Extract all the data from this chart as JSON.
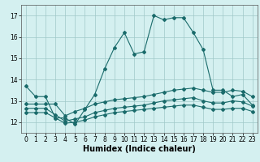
{
  "xlabel": "Humidex (Indice chaleur)",
  "xlim": [
    -0.5,
    23.5
  ],
  "ylim": [
    11.5,
    17.5
  ],
  "yticks": [
    12,
    13,
    14,
    15,
    16,
    17
  ],
  "xticks": [
    0,
    1,
    2,
    3,
    4,
    5,
    6,
    7,
    8,
    9,
    10,
    11,
    12,
    13,
    14,
    15,
    16,
    17,
    18,
    19,
    20,
    21,
    22,
    23
  ],
  "bg_color": "#d4f0f0",
  "grid_color": "#a0c8c8",
  "line_color": "#1a6b6b",
  "line1_x": [
    0,
    1,
    2,
    3,
    4,
    5,
    6,
    7,
    8,
    9,
    10,
    11,
    12,
    13,
    14,
    15,
    16,
    17,
    18,
    19,
    20,
    21,
    22,
    23
  ],
  "line1_y": [
    13.7,
    13.2,
    13.2,
    12.2,
    12.2,
    11.9,
    12.6,
    13.3,
    14.5,
    15.5,
    16.2,
    15.2,
    15.3,
    17.0,
    16.8,
    16.9,
    16.9,
    16.2,
    15.4,
    13.5,
    13.5,
    13.2,
    13.3,
    12.8
  ],
  "line2_x": [
    0,
    1,
    2,
    3,
    4,
    5,
    6,
    7,
    8,
    9,
    10,
    11,
    12,
    13,
    14,
    15,
    16,
    17,
    18,
    19,
    20,
    21,
    22,
    23
  ],
  "line2_y": [
    12.85,
    12.85,
    12.85,
    12.85,
    12.3,
    12.5,
    12.65,
    12.85,
    12.95,
    13.05,
    13.1,
    13.15,
    13.2,
    13.3,
    13.4,
    13.5,
    13.55,
    13.6,
    13.5,
    13.4,
    13.4,
    13.5,
    13.45,
    13.2
  ],
  "line3_x": [
    0,
    1,
    2,
    3,
    4,
    5,
    6,
    7,
    8,
    9,
    10,
    11,
    12,
    13,
    14,
    15,
    16,
    17,
    18,
    19,
    20,
    21,
    22,
    23
  ],
  "line3_y": [
    12.65,
    12.65,
    12.65,
    12.35,
    12.05,
    12.15,
    12.25,
    12.45,
    12.55,
    12.65,
    12.7,
    12.75,
    12.8,
    12.9,
    13.0,
    13.05,
    13.1,
    13.15,
    13.0,
    12.9,
    12.9,
    13.0,
    12.95,
    12.75
  ],
  "line4_x": [
    0,
    1,
    2,
    3,
    4,
    5,
    6,
    7,
    8,
    9,
    10,
    11,
    12,
    13,
    14,
    15,
    16,
    17,
    18,
    19,
    20,
    21,
    22,
    23
  ],
  "line4_y": [
    12.45,
    12.45,
    12.45,
    12.2,
    11.95,
    12.0,
    12.1,
    12.25,
    12.35,
    12.45,
    12.5,
    12.55,
    12.6,
    12.65,
    12.7,
    12.75,
    12.8,
    12.8,
    12.7,
    12.6,
    12.6,
    12.65,
    12.65,
    12.5
  ],
  "marker": "D",
  "markersize": 2.0,
  "linewidth": 0.8,
  "label_fontsize": 7,
  "tick_fontsize": 5.5
}
